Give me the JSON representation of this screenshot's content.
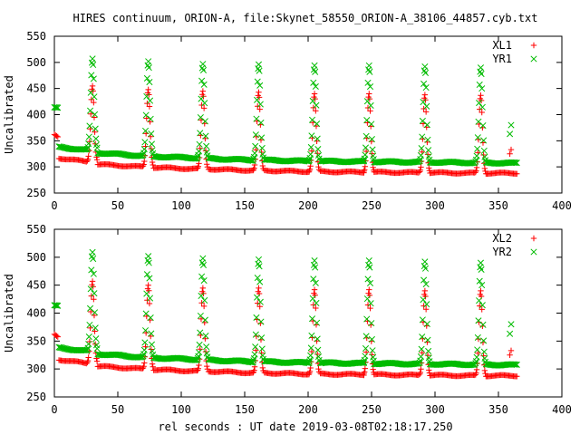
{
  "title": "HIRES continuum, ORION-A, file:Skynet_58550_ORION-A_38106_44857.cyb.txt",
  "xlabel": "rel seconds : UT date 2019-03-08T02:18:17.250",
  "chart_data": [
    {
      "type": "scatter",
      "ylabel": "Uncalibrated",
      "xlim": [
        0,
        400
      ],
      "ylim": [
        250,
        550
      ],
      "xticks": [
        0,
        50,
        100,
        150,
        200,
        250,
        300,
        350,
        400
      ],
      "yticks": [
        250,
        300,
        350,
        400,
        450,
        500,
        550
      ],
      "legend_position": "top-right",
      "series": [
        {
          "name": "XL1",
          "marker": "+",
          "color": "#ff0000",
          "baseline_segments": [
            {
              "x": [
                0,
                3
              ],
              "y": [
                362,
                358
              ]
            },
            {
              "x": [
                3,
                26
              ],
              "y": [
                317,
                310
              ]
            },
            {
              "x": [
                34,
                70
              ],
              "y": [
                305,
                300
              ]
            },
            {
              "x": [
                78,
                113
              ],
              "y": [
                299,
                296
              ]
            },
            {
              "x": [
                121,
                157
              ],
              "y": [
                296,
                293
              ]
            },
            {
              "x": [
                165,
                201
              ],
              "y": [
                293,
                291
              ]
            },
            {
              "x": [
                209,
                244
              ],
              "y": [
                291,
                290
              ]
            },
            {
              "x": [
                252,
                288
              ],
              "y": [
                290,
                289
              ]
            },
            {
              "x": [
                296,
                332
              ],
              "y": [
                289,
                288
              ]
            },
            {
              "x": [
                340,
                365
              ],
              "y": [
                288,
                288
              ]
            }
          ],
          "peaks": [
            {
              "x": 30,
              "y": 455
            },
            {
              "x": 74,
              "y": 448
            },
            {
              "x": 117,
              "y": 445
            },
            {
              "x": 161,
              "y": 443
            },
            {
              "x": 205,
              "y": 440
            },
            {
              "x": 248,
              "y": 440
            },
            {
              "x": 292,
              "y": 438
            },
            {
              "x": 336,
              "y": 437
            }
          ],
          "outliers": [
            {
              "x": 360,
              "y": 333
            },
            {
              "x": 359,
              "y": 325
            }
          ]
        },
        {
          "name": "YR1",
          "marker": "×",
          "color": "#00bb00",
          "baseline_segments": [
            {
              "x": [
                0,
                3
              ],
              "y": [
                413,
                412
              ]
            },
            {
              "x": [
                3,
                26
              ],
              "y": [
                338,
                332
              ]
            },
            {
              "x": [
                34,
                70
              ],
              "y": [
                327,
                321
              ]
            },
            {
              "x": [
                78,
                113
              ],
              "y": [
                320,
                317
              ]
            },
            {
              "x": [
                121,
                157
              ],
              "y": [
                316,
                313
              ]
            },
            {
              "x": [
                165,
                201
              ],
              "y": [
                313,
                311
              ]
            },
            {
              "x": [
                209,
                244
              ],
              "y": [
                311,
                310
              ]
            },
            {
              "x": [
                252,
                288
              ],
              "y": [
                310,
                309
              ]
            },
            {
              "x": [
                296,
                332
              ],
              "y": [
                309,
                308
              ]
            },
            {
              "x": [
                340,
                365
              ],
              "y": [
                308,
                307
              ]
            }
          ],
          "peaks": [
            {
              "x": 30,
              "y": 507
            },
            {
              "x": 74,
              "y": 502
            },
            {
              "x": 117,
              "y": 497
            },
            {
              "x": 161,
              "y": 496
            },
            {
              "x": 205,
              "y": 494
            },
            {
              "x": 248,
              "y": 494
            },
            {
              "x": 292,
              "y": 492
            },
            {
              "x": 336,
              "y": 490
            }
          ],
          "outliers": [
            {
              "x": 360,
              "y": 380
            },
            {
              "x": 359,
              "y": 363
            }
          ]
        }
      ]
    },
    {
      "type": "scatter",
      "ylabel": "Uncalibrated",
      "xlim": [
        0,
        400
      ],
      "ylim": [
        250,
        550
      ],
      "xticks": [
        0,
        50,
        100,
        150,
        200,
        250,
        300,
        350,
        400
      ],
      "yticks": [
        250,
        300,
        350,
        400,
        450,
        500,
        550
      ],
      "legend_position": "top-right",
      "series": [
        {
          "name": "XL2",
          "marker": "+",
          "color": "#ff0000",
          "baseline_segments": [
            {
              "x": [
                0,
                3
              ],
              "y": [
                362,
                358
              ]
            },
            {
              "x": [
                3,
                26
              ],
              "y": [
                317,
                310
              ]
            },
            {
              "x": [
                34,
                70
              ],
              "y": [
                305,
                300
              ]
            },
            {
              "x": [
                78,
                113
              ],
              "y": [
                299,
                296
              ]
            },
            {
              "x": [
                121,
                157
              ],
              "y": [
                296,
                293
              ]
            },
            {
              "x": [
                165,
                201
              ],
              "y": [
                293,
                291
              ]
            },
            {
              "x": [
                209,
                244
              ],
              "y": [
                291,
                290
              ]
            },
            {
              "x": [
                252,
                288
              ],
              "y": [
                290,
                289
              ]
            },
            {
              "x": [
                296,
                332
              ],
              "y": [
                289,
                288
              ]
            },
            {
              "x": [
                340,
                365
              ],
              "y": [
                288,
                288
              ]
            }
          ],
          "peaks": [
            {
              "x": 30,
              "y": 457
            },
            {
              "x": 74,
              "y": 450
            },
            {
              "x": 117,
              "y": 445
            },
            {
              "x": 161,
              "y": 445
            },
            {
              "x": 205,
              "y": 442
            },
            {
              "x": 248,
              "y": 442
            },
            {
              "x": 292,
              "y": 440
            },
            {
              "x": 336,
              "y": 440
            }
          ],
          "outliers": [
            {
              "x": 360,
              "y": 333
            },
            {
              "x": 359,
              "y": 325
            }
          ]
        },
        {
          "name": "YR2",
          "marker": "×",
          "color": "#00bb00",
          "baseline_segments": [
            {
              "x": [
                0,
                3
              ],
              "y": [
                413,
                412
              ]
            },
            {
              "x": [
                3,
                26
              ],
              "y": [
                338,
                332
              ]
            },
            {
              "x": [
                34,
                70
              ],
              "y": [
                327,
                321
              ]
            },
            {
              "x": [
                78,
                113
              ],
              "y": [
                320,
                317
              ]
            },
            {
              "x": [
                121,
                157
              ],
              "y": [
                316,
                313
              ]
            },
            {
              "x": [
                165,
                201
              ],
              "y": [
                313,
                311
              ]
            },
            {
              "x": [
                209,
                244
              ],
              "y": [
                311,
                310
              ]
            },
            {
              "x": [
                252,
                288
              ],
              "y": [
                310,
                309
              ]
            },
            {
              "x": [
                296,
                332
              ],
              "y": [
                309,
                308
              ]
            },
            {
              "x": [
                340,
                365
              ],
              "y": [
                308,
                307
              ]
            }
          ],
          "peaks": [
            {
              "x": 30,
              "y": 509
            },
            {
              "x": 74,
              "y": 502
            },
            {
              "x": 117,
              "y": 498
            },
            {
              "x": 161,
              "y": 496
            },
            {
              "x": 205,
              "y": 494
            },
            {
              "x": 248,
              "y": 494
            },
            {
              "x": 292,
              "y": 492
            },
            {
              "x": 336,
              "y": 490
            }
          ],
          "outliers": [
            {
              "x": 360,
              "y": 380
            },
            {
              "x": 359,
              "y": 363
            }
          ]
        }
      ]
    }
  ]
}
